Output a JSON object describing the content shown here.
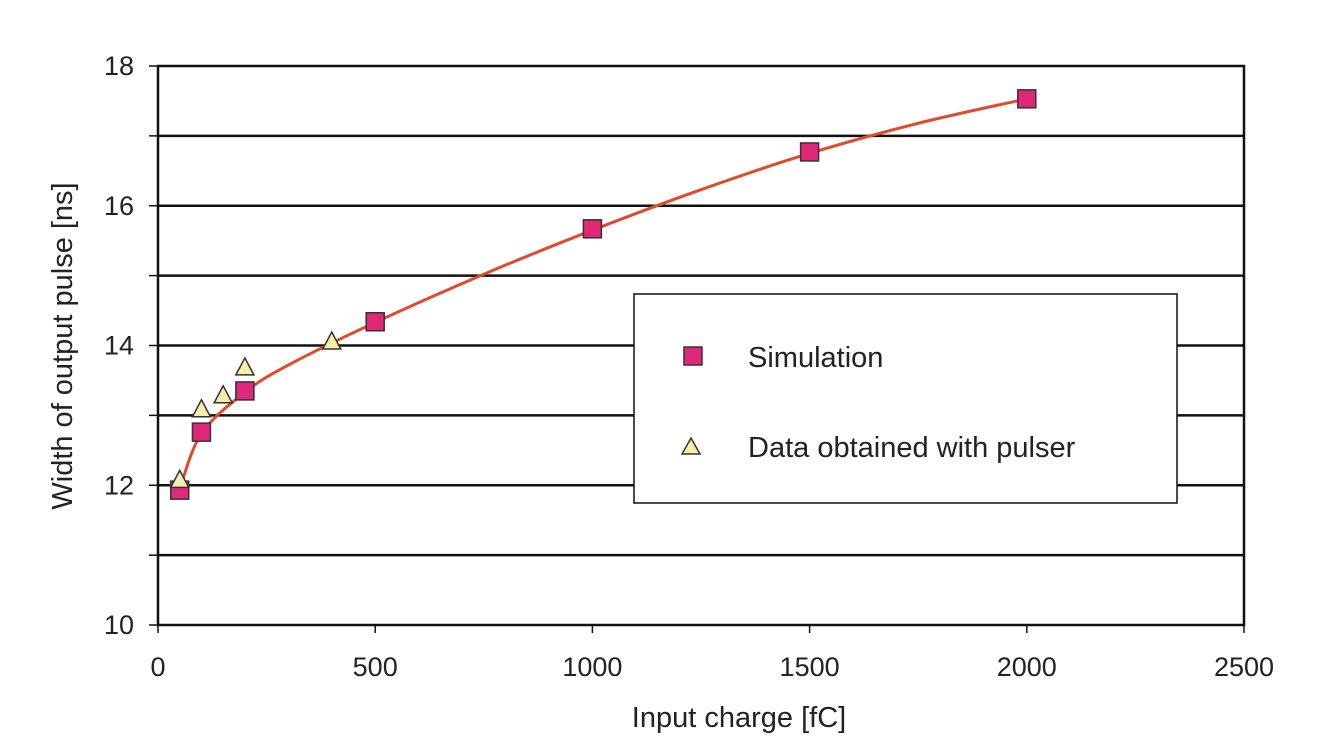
{
  "chart_data": {
    "type": "scatter",
    "title": "",
    "xlabel": "Input charge [fC]",
    "ylabel": "Width of output pulse [ns]",
    "xlim": [
      0,
      2500
    ],
    "ylim": [
      10,
      18
    ],
    "xticks": [
      "0",
      "500",
      "1000",
      "1500",
      "2000",
      "2500"
    ],
    "yticks": [
      "10",
      "12",
      "14",
      "16",
      "18"
    ],
    "grid": "horizontal lines at every 1 ns",
    "legend_position": "center-right",
    "series": [
      {
        "name": "Simulation",
        "marker": "square",
        "color": "#e0287a",
        "points": [
          {
            "x": 50,
            "y": 11.93
          },
          {
            "x": 100,
            "y": 12.76
          },
          {
            "x": 200,
            "y": 13.35
          },
          {
            "x": 500,
            "y": 14.34
          },
          {
            "x": 1000,
            "y": 15.67
          },
          {
            "x": 1500,
            "y": 16.77
          },
          {
            "x": 2000,
            "y": 17.53
          }
        ]
      },
      {
        "name": "Data obtained with pulser",
        "marker": "triangle",
        "color": "#f6efab",
        "points": [
          {
            "x": 50,
            "y": 12.07
          },
          {
            "x": 100,
            "y": 13.08
          },
          {
            "x": 150,
            "y": 13.28
          },
          {
            "x": 200,
            "y": 13.68
          },
          {
            "x": 400,
            "y": 14.05
          }
        ]
      }
    ],
    "fit_curve": {
      "color": "#e04a2e",
      "points": [
        {
          "x": 50,
          "y": 11.95
        },
        {
          "x": 100,
          "y": 12.74
        },
        {
          "x": 200,
          "y": 13.33
        },
        {
          "x": 300,
          "y": 13.72
        },
        {
          "x": 500,
          "y": 14.33
        },
        {
          "x": 750,
          "y": 15.02
        },
        {
          "x": 1000,
          "y": 15.65
        },
        {
          "x": 1250,
          "y": 16.23
        },
        {
          "x": 1500,
          "y": 16.75
        },
        {
          "x": 1750,
          "y": 17.18
        },
        {
          "x": 2000,
          "y": 17.53
        }
      ]
    }
  }
}
